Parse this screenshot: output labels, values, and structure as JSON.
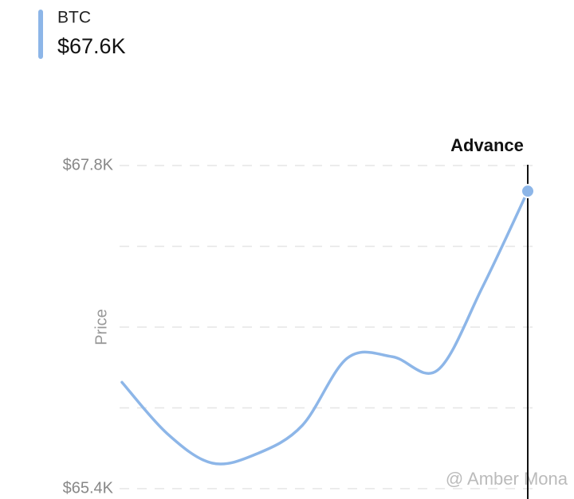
{
  "chart_data": {
    "type": "line",
    "series": [
      {
        "name": "BTC",
        "color": "#8db6e8",
        "current_label": "$67.6K",
        "values": [
          66190,
          65810,
          65590,
          65660,
          65870,
          66370,
          66380,
          66280,
          66900,
          67610
        ]
      }
    ],
    "categories": [
      null,
      null,
      null,
      null,
      null,
      null,
      null,
      null,
      null,
      null
    ],
    "ylabel": "Price",
    "ylim": [
      65400,
      67800
    ],
    "yticks": [
      {
        "value": 67800,
        "label": "$67.8K"
      },
      {
        "value": 65400,
        "label": "$65.4K"
      }
    ],
    "grid_lines": [
      67200,
      66600,
      66000
    ],
    "annotation": "Advance",
    "watermark": "@ Amber Mona"
  }
}
